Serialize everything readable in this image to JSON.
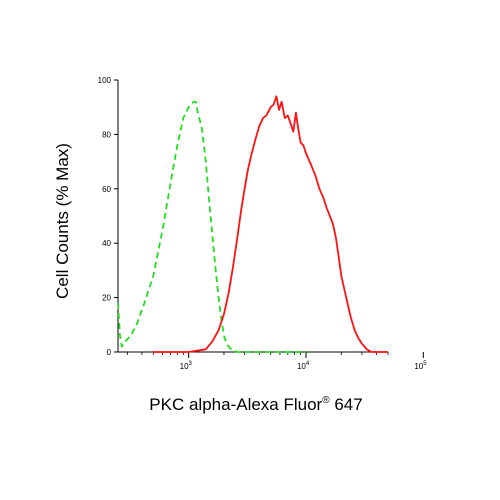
{
  "colors": {
    "control": "#22dd22",
    "sample": "#ff1111",
    "axis": "#000000"
  },
  "chart_data": {
    "type": "line",
    "title": "",
    "xlabel": "PKC alpha-Alexa Fluor",
    "xlabel_superscript": "®",
    "xlabel_suffix": " 647",
    "ylabel": "Cell Counts (% Max)",
    "x_scale": "log",
    "xlim": [
      250,
      50000
    ],
    "ylim": [
      0,
      100
    ],
    "grid": false,
    "legend": "none",
    "x_ticks": [
      {
        "value": 1000,
        "base": "10",
        "exp": "3"
      },
      {
        "value": 10000,
        "base": "10",
        "exp": "4"
      },
      {
        "value": 100000,
        "base": "10",
        "exp": "5"
      }
    ],
    "y_ticks": [
      {
        "value": 0,
        "label": "0"
      },
      {
        "value": 20,
        "label": "20"
      },
      {
        "value": 40,
        "label": "40"
      },
      {
        "value": 60,
        "label": "60"
      },
      {
        "value": 80,
        "label": "80"
      },
      {
        "value": 100,
        "label": "100"
      }
    ],
    "series": [
      {
        "key": "control",
        "style": "dashed",
        "color": "#22dd22",
        "points": [
          [
            250,
            18
          ],
          [
            260,
            6
          ],
          [
            270,
            2
          ],
          [
            290,
            4
          ],
          [
            320,
            6
          ],
          [
            360,
            10
          ],
          [
            420,
            18
          ],
          [
            500,
            28
          ],
          [
            600,
            45
          ],
          [
            700,
            62
          ],
          [
            800,
            76
          ],
          [
            900,
            86
          ],
          [
            1000,
            90
          ],
          [
            1050,
            91
          ],
          [
            1100,
            92
          ],
          [
            1150,
            92
          ],
          [
            1200,
            88
          ],
          [
            1300,
            82
          ],
          [
            1400,
            70
          ],
          [
            1500,
            55
          ],
          [
            1600,
            42
          ],
          [
            1700,
            30
          ],
          [
            1800,
            20
          ],
          [
            1900,
            12
          ],
          [
            2000,
            6
          ],
          [
            2100,
            3
          ],
          [
            2300,
            1
          ],
          [
            2600,
            0
          ],
          [
            5000,
            0
          ],
          [
            10000,
            0
          ]
        ]
      },
      {
        "key": "sample",
        "style": "solid",
        "color": "#ff1111",
        "points": [
          [
            500,
            0
          ],
          [
            1000,
            0
          ],
          [
            1400,
            1
          ],
          [
            1600,
            4
          ],
          [
            1800,
            8
          ],
          [
            2000,
            14
          ],
          [
            2200,
            22
          ],
          [
            2400,
            32
          ],
          [
            2600,
            42
          ],
          [
            2800,
            52
          ],
          [
            3000,
            60
          ],
          [
            3200,
            67
          ],
          [
            3400,
            72
          ],
          [
            3700,
            78
          ],
          [
            4000,
            83
          ],
          [
            4300,
            86
          ],
          [
            4600,
            87
          ],
          [
            5000,
            90
          ],
          [
            5300,
            91
          ],
          [
            5600,
            94
          ],
          [
            5900,
            89
          ],
          [
            6200,
            92
          ],
          [
            6600,
            86
          ],
          [
            7000,
            87
          ],
          [
            7400,
            84
          ],
          [
            7800,
            81
          ],
          [
            8200,
            88
          ],
          [
            8600,
            82
          ],
          [
            9000,
            77
          ],
          [
            9500,
            76
          ],
          [
            10000,
            73
          ],
          [
            11000,
            69
          ],
          [
            12000,
            65
          ],
          [
            13000,
            60
          ],
          [
            14000,
            57
          ],
          [
            15000,
            53
          ],
          [
            16000,
            50
          ],
          [
            17000,
            47
          ],
          [
            18000,
            42
          ],
          [
            19000,
            35
          ],
          [
            20000,
            28
          ],
          [
            22000,
            20
          ],
          [
            24000,
            13
          ],
          [
            26000,
            8
          ],
          [
            28000,
            5
          ],
          [
            30000,
            3
          ],
          [
            33000,
            1
          ],
          [
            36000,
            0
          ],
          [
            50000,
            0
          ]
        ]
      }
    ]
  }
}
